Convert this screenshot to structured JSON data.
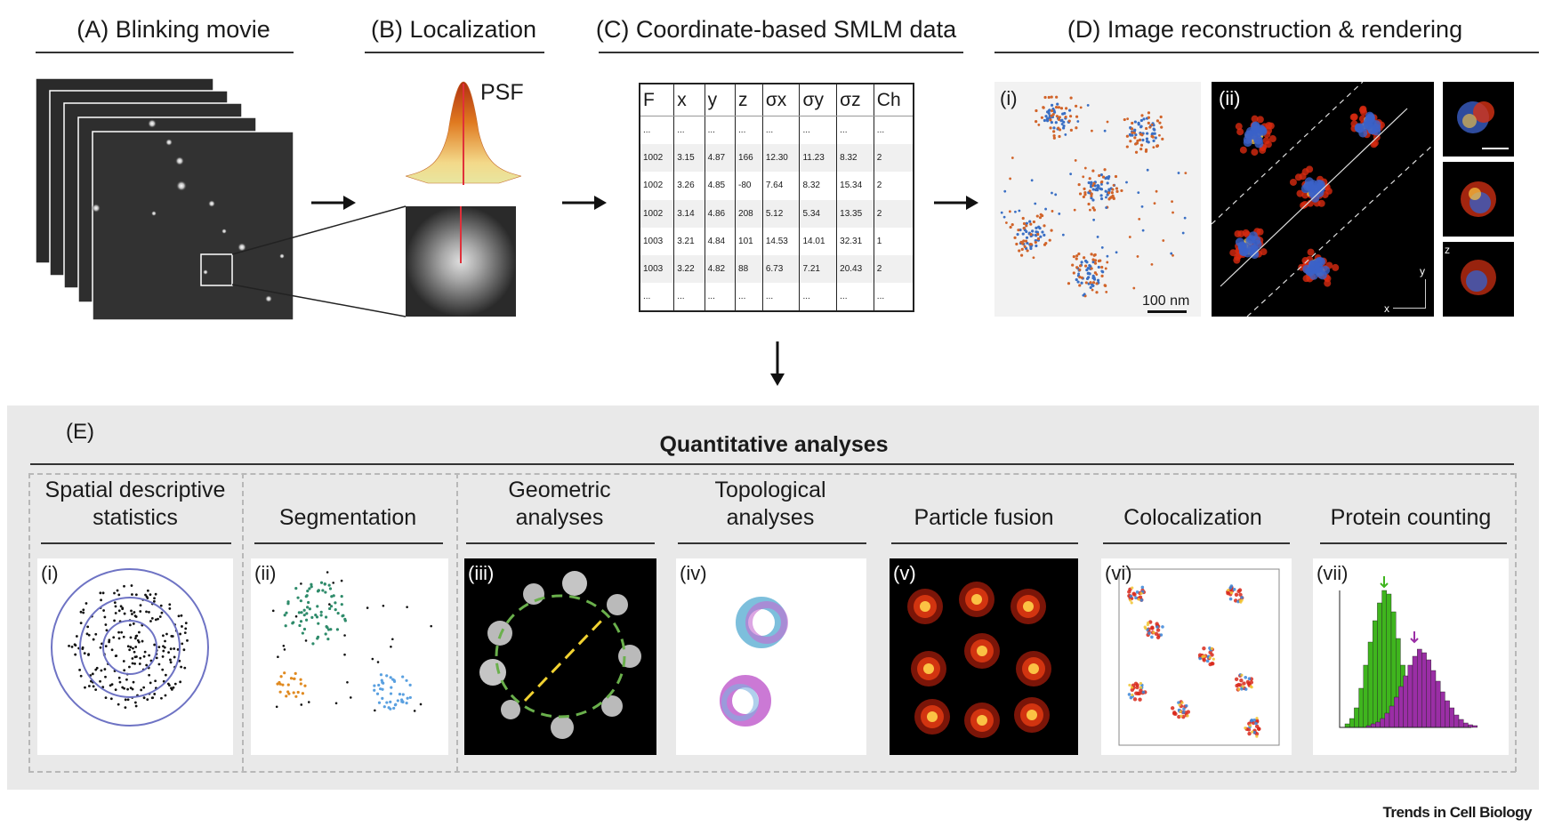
{
  "top": {
    "a_title": "(A) Blinking movie",
    "b_title": "(B) Localization",
    "b_psf": "PSF",
    "c_title": "(C) Coordinate-based SMLM data",
    "d_title": "(D) Image reconstruction & rendering",
    "d_i": "(i)",
    "d_ii": "(ii)",
    "scalebar": "100 nm",
    "axis_y": "y",
    "axis_x": "x",
    "axis_z": "z"
  },
  "table": {
    "headers": [
      "F",
      "x",
      "y",
      "z",
      "σx",
      "σy",
      "σz",
      "Ch"
    ],
    "rows": [
      [
        "...",
        "...",
        "...",
        "...",
        "...",
        "...",
        "...",
        "..."
      ],
      [
        "1002",
        "3.15",
        "4.87",
        "166",
        "12.30",
        "11.23",
        "8.32",
        "2"
      ],
      [
        "1002",
        "3.26",
        "4.85",
        "-80",
        "7.64",
        "8.32",
        "15.34",
        "2"
      ],
      [
        "1002",
        "3.14",
        "4.86",
        "208",
        "5.12",
        "5.34",
        "13.35",
        "2"
      ],
      [
        "1003",
        "3.21",
        "4.84",
        "101",
        "14.53",
        "14.01",
        "32.31",
        "1"
      ],
      [
        "1003",
        "3.22",
        "4.82",
        "88",
        "6.73",
        "7.21",
        "20.43",
        "2"
      ],
      [
        "...",
        "...",
        "...",
        "...",
        "...",
        "...",
        "...",
        "..."
      ]
    ]
  },
  "e": {
    "label": "(E)",
    "title": "Quantitative analyses",
    "panels": [
      {
        "title": "Spatial descriptive statistics",
        "num": "(i)"
      },
      {
        "title": "Segmentation",
        "num": "(ii)"
      },
      {
        "title": "Geometric analyses",
        "num": "(iii)"
      },
      {
        "title": "Topological analyses",
        "num": "(iv)"
      },
      {
        "title": "Particle fusion",
        "num": "(v)"
      },
      {
        "title": "Colocalization",
        "num": "(vi)"
      },
      {
        "title": "Protein counting",
        "num": "(vii)"
      }
    ]
  },
  "footer": "Trends in Cell Biology",
  "colors": {
    "ch1": "#3a6fc4",
    "ch2": "#d1642a",
    "ring": "#6e73c4",
    "green": "#3fb51e",
    "purple": "#9a2ea5"
  }
}
